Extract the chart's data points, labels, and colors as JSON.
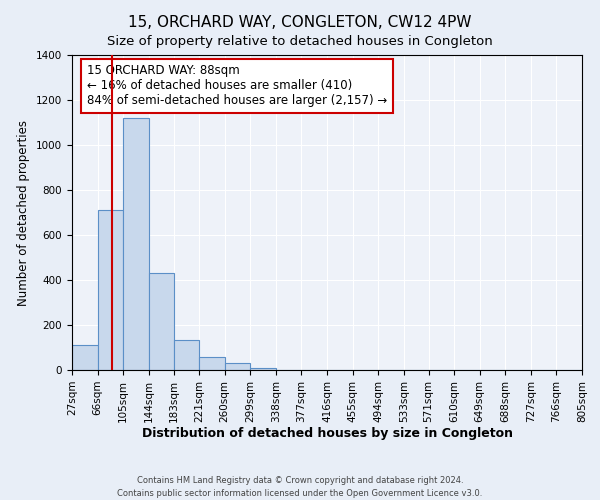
{
  "title": "15, ORCHARD WAY, CONGLETON, CW12 4PW",
  "subtitle": "Size of property relative to detached houses in Congleton",
  "xlabel": "Distribution of detached houses by size in Congleton",
  "ylabel": "Number of detached properties",
  "bin_edges": [
    27,
    66,
    105,
    144,
    183,
    221,
    260,
    299,
    338,
    377,
    416,
    455,
    494,
    533,
    571,
    610,
    649,
    688,
    727,
    766,
    805
  ],
  "bar_heights": [
    110,
    710,
    1120,
    430,
    135,
    57,
    32,
    10,
    0,
    0,
    0,
    0,
    0,
    0,
    0,
    0,
    0,
    0,
    0,
    0
  ],
  "bar_color": "#c8d8ec",
  "bar_edge_color": "#5b8fc7",
  "bar_edge_width": 0.8,
  "property_size": 88,
  "red_line_color": "#cc0000",
  "annotation_line1": "15 ORCHARD WAY: 88sqm",
  "annotation_line2": "← 16% of detached houses are smaller (410)",
  "annotation_line3": "84% of semi-detached houses are larger (2,157) →",
  "annotation_box_color": "white",
  "annotation_box_edge_color": "#cc0000",
  "annotation_box_edge_width": 1.5,
  "annotation_fontsize": 8.5,
  "ylim": [
    0,
    1400
  ],
  "yticks": [
    0,
    200,
    400,
    600,
    800,
    1000,
    1200,
    1400
  ],
  "bg_color": "#e8eef7",
  "plot_bg_color": "#eef2f9",
  "grid_color": "#ffffff",
  "footer_line1": "Contains HM Land Registry data © Crown copyright and database right 2024.",
  "footer_line2": "Contains public sector information licensed under the Open Government Licence v3.0.",
  "title_fontsize": 11,
  "subtitle_fontsize": 9.5,
  "xlabel_fontsize": 9,
  "ylabel_fontsize": 8.5,
  "tick_fontsize": 7.5
}
